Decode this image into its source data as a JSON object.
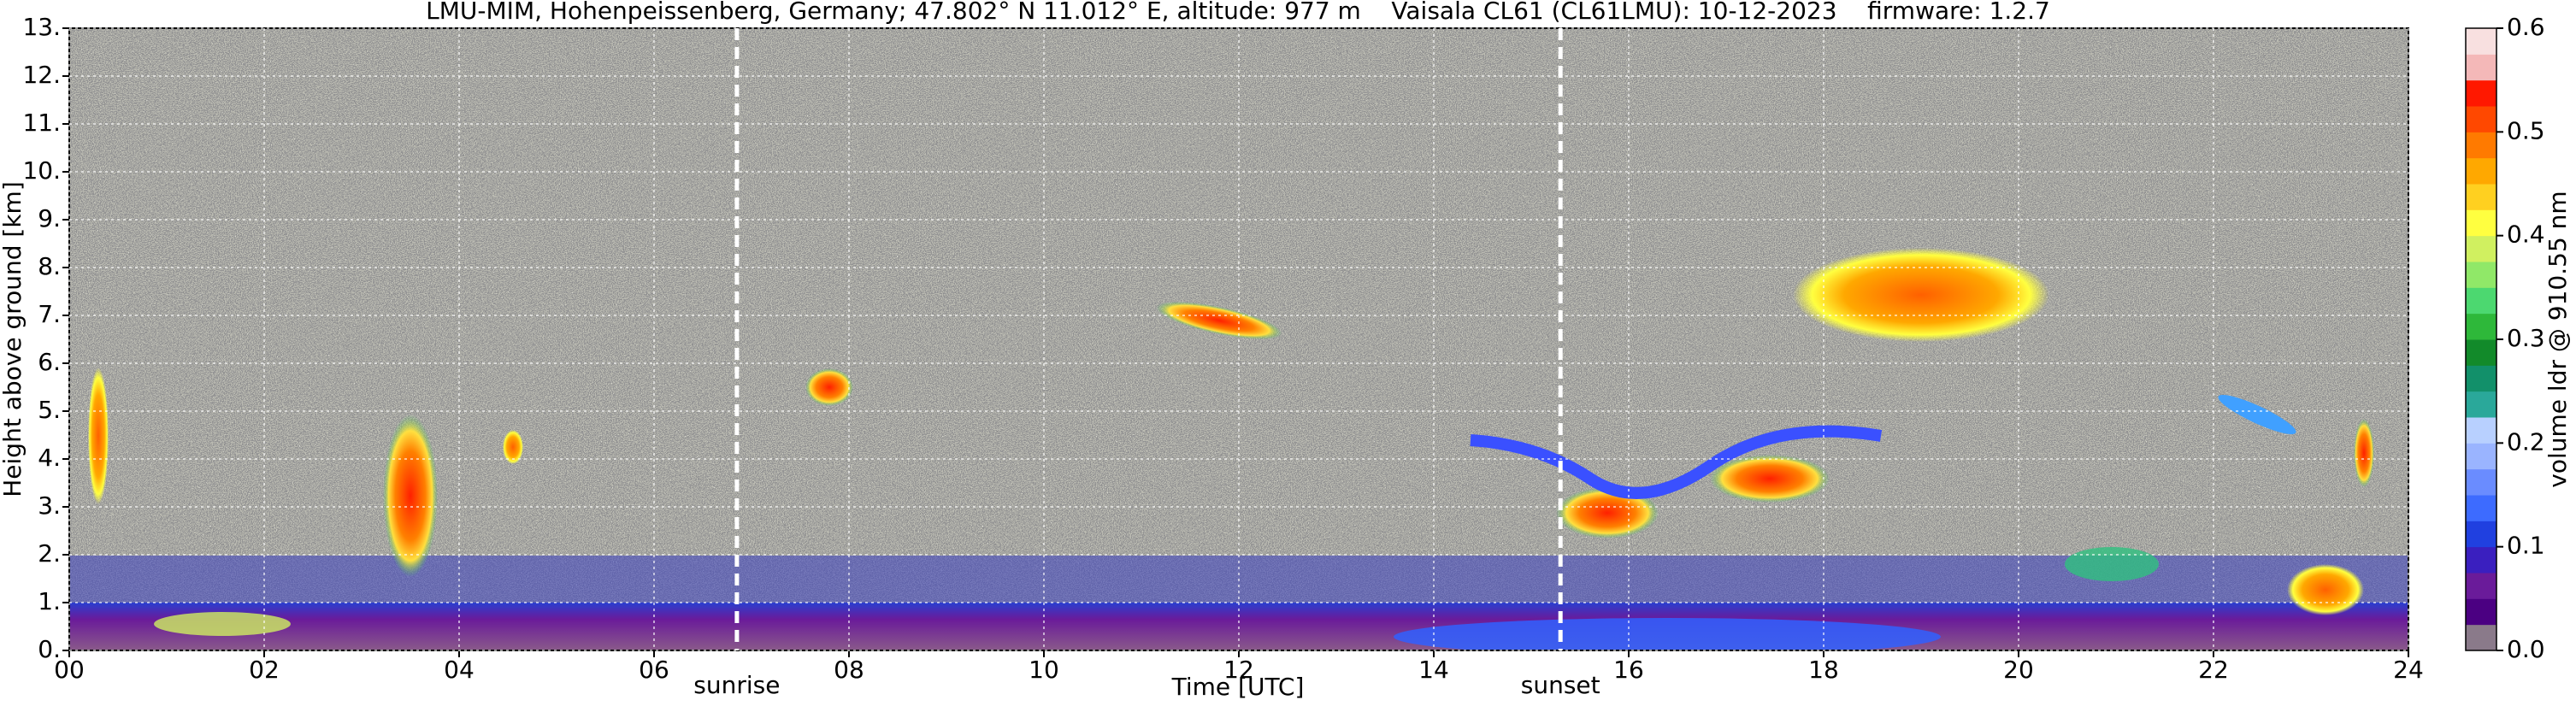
{
  "chart_data": {
    "type": "heatmap",
    "title": "LMU-MIM, Hohenpeissenberg, Germany; 47.802° N 11.012° E, altitude: 977 m    Vaisala CL61 (CL61LMU): 10-12-2023    firmware: 1.2.7",
    "xlabel": "Time [UTC]",
    "ylabel": "Height above ground [km]",
    "xlim": [
      0,
      24
    ],
    "xticks": [
      {
        "value": 0,
        "label": "00"
      },
      {
        "value": 2,
        "label": "02"
      },
      {
        "value": 4,
        "label": "04"
      },
      {
        "value": 6,
        "label": "06"
      },
      {
        "value": 8,
        "label": "08"
      },
      {
        "value": 10,
        "label": "10"
      },
      {
        "value": 12,
        "label": "12"
      },
      {
        "value": 14,
        "label": "14"
      },
      {
        "value": 16,
        "label": "16"
      },
      {
        "value": 18,
        "label": "18"
      },
      {
        "value": 20,
        "label": "20"
      },
      {
        "value": 22,
        "label": "22"
      },
      {
        "value": 24,
        "label": "24"
      }
    ],
    "ylim": [
      0,
      13
    ],
    "yticks": [
      {
        "value": 0,
        "label": "0."
      },
      {
        "value": 1,
        "label": "1."
      },
      {
        "value": 2,
        "label": "2."
      },
      {
        "value": 3,
        "label": "3."
      },
      {
        "value": 4,
        "label": "4."
      },
      {
        "value": 5,
        "label": "5."
      },
      {
        "value": 6,
        "label": "6."
      },
      {
        "value": 7,
        "label": "7."
      },
      {
        "value": 8,
        "label": "8."
      },
      {
        "value": 9,
        "label": "9."
      },
      {
        "value": 10,
        "label": "10."
      },
      {
        "value": 11,
        "label": "11."
      },
      {
        "value": 12,
        "label": "12."
      },
      {
        "value": 13,
        "label": "13."
      }
    ],
    "grid": true,
    "markers": [
      {
        "label": "sunrise",
        "x": 6.85
      },
      {
        "label": "sunset",
        "x": 15.3
      }
    ],
    "colorbar": {
      "label": "volume ldr @ 910.55 nm",
      "clim": [
        0,
        0.6
      ],
      "ticks": [
        {
          "value": 0,
          "label": "0.0"
        },
        {
          "value": 0.1,
          "label": "0.1"
        },
        {
          "value": 0.2,
          "label": "0.2"
        },
        {
          "value": 0.3,
          "label": "0.3"
        },
        {
          "value": 0.4,
          "label": "0.4"
        },
        {
          "value": 0.5,
          "label": "0.5"
        },
        {
          "value": 0.6,
          "label": "0.6"
        }
      ],
      "colors": [
        "#8a7a8a",
        "#4b0082",
        "#6a1b9a",
        "#3a1fbf",
        "#2040e0",
        "#3d6bff",
        "#6a8cff",
        "#9ab4ff",
        "#b8d0ff",
        "#2aa89a",
        "#12906a",
        "#128a2a",
        "#2eb83a",
        "#4cd870",
        "#90e868",
        "#d0f060",
        "#ffff40",
        "#ffd020",
        "#ffa800",
        "#ff7a00",
        "#ff4800",
        "#ff1800",
        "#f4b8b8",
        "#f8e0e0"
      ]
    }
  }
}
